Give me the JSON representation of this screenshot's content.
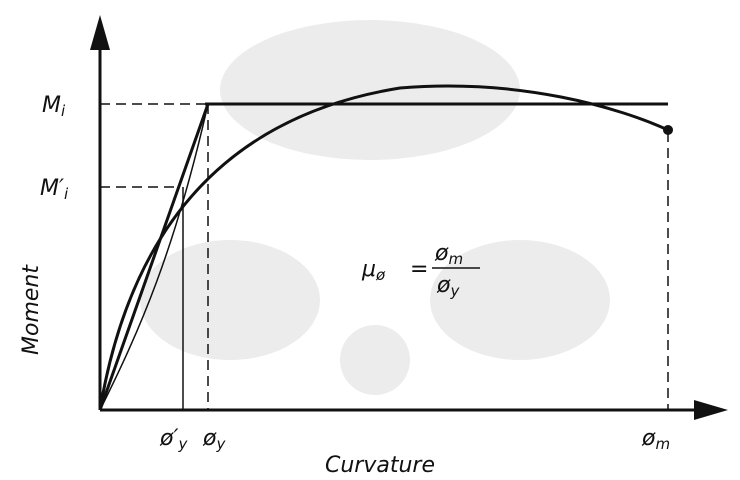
{
  "axes": {
    "y_label": "Moment",
    "x_label": "Curvature"
  },
  "moment_labels": [
    {
      "base": "M",
      "sub": "i"
    },
    {
      "base": "M′",
      "sub": "i"
    }
  ],
  "curvature_labels": [
    {
      "base": "ø′",
      "sub": "y"
    },
    {
      "base": "ø",
      "sub": "y"
    },
    {
      "base": "ø",
      "sub": "m"
    }
  ],
  "formula": {
    "lhs": {
      "base": "μ",
      "sub": "ø"
    },
    "operator": "=",
    "numerator": {
      "base": "ø",
      "sub": "m"
    },
    "denominator": {
      "base": "ø",
      "sub": "y"
    }
  }
}
